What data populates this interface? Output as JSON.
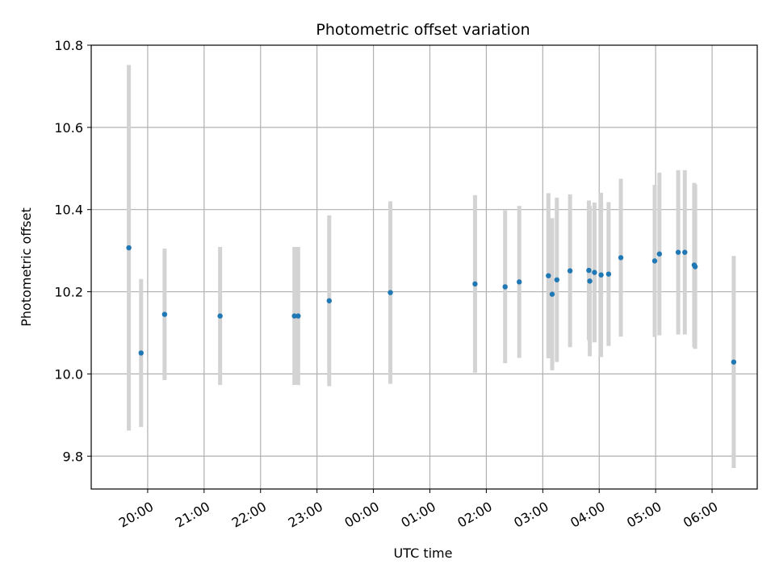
{
  "chart_data": {
    "type": "scatter",
    "title": "Photometric offset variation",
    "xlabel": "UTC time",
    "ylabel": "Photometric offset",
    "grid": true,
    "x_axis": {
      "unit": "hours since 19:00",
      "range": [
        0.0,
        11.8
      ],
      "ticks": [
        {
          "x": 1,
          "label": "20:00"
        },
        {
          "x": 2,
          "label": "21:00"
        },
        {
          "x": 3,
          "label": "22:00"
        },
        {
          "x": 4,
          "label": "23:00"
        },
        {
          "x": 5,
          "label": "00:00"
        },
        {
          "x": 6,
          "label": "01:00"
        },
        {
          "x": 7,
          "label": "02:00"
        },
        {
          "x": 8,
          "label": "03:00"
        },
        {
          "x": 9,
          "label": "04:00"
        },
        {
          "x": 10,
          "label": "05:00"
        },
        {
          "x": 11,
          "label": "06:00"
        }
      ]
    },
    "y_axis": {
      "range": [
        9.72,
        10.8
      ],
      "ticks": [
        9.8,
        10.0,
        10.2,
        10.4,
        10.6,
        10.8
      ],
      "tick_labels": [
        "9.8",
        "10.0",
        "10.2",
        "10.4",
        "10.6",
        "10.8"
      ]
    },
    "colors": {
      "point": "#1f77b4",
      "errorbar": "#d3d3d3",
      "grid": "#b0b0b0"
    },
    "points": [
      {
        "time": "19:40",
        "y": 10.307,
        "yerr": 0.445
      },
      {
        "time": "19:53",
        "y": 10.051,
        "yerr": 0.18
      },
      {
        "time": "20:18",
        "y": 10.145,
        "yerr": 0.16
      },
      {
        "time": "21:17",
        "y": 10.141,
        "yerr": 0.168
      },
      {
        "time": "22:36",
        "y": 10.141,
        "yerr": 0.168
      },
      {
        "time": "22:40",
        "y": 10.141,
        "yerr": 0.168
      },
      {
        "time": "23:13",
        "y": 10.178,
        "yerr": 0.208
      },
      {
        "time": "00:18",
        "y": 10.198,
        "yerr": 0.222
      },
      {
        "time": "01:48",
        "y": 10.219,
        "yerr": 0.216
      },
      {
        "time": "02:20",
        "y": 10.212,
        "yerr": 0.186
      },
      {
        "time": "02:35",
        "y": 10.224,
        "yerr": 0.185
      },
      {
        "time": "03:06",
        "y": 10.239,
        "yerr": 0.201
      },
      {
        "time": "03:10",
        "y": 10.194,
        "yerr": 0.185
      },
      {
        "time": "03:15",
        "y": 10.229,
        "yerr": 0.2
      },
      {
        "time": "03:29",
        "y": 10.251,
        "yerr": 0.186
      },
      {
        "time": "03:49",
        "y": 10.252,
        "yerr": 0.17
      },
      {
        "time": "03:50",
        "y": 10.226,
        "yerr": 0.183
      },
      {
        "time": "03:55",
        "y": 10.247,
        "yerr": 0.17
      },
      {
        "time": "04:02",
        "y": 10.241,
        "yerr": 0.2
      },
      {
        "time": "04:10",
        "y": 10.243,
        "yerr": 0.175
      },
      {
        "time": "04:23",
        "y": 10.283,
        "yerr": 0.192
      },
      {
        "time": "04:59",
        "y": 10.275,
        "yerr": 0.185
      },
      {
        "time": "05:04",
        "y": 10.292,
        "yerr": 0.198
      },
      {
        "time": "05:24",
        "y": 10.296,
        "yerr": 0.2
      },
      {
        "time": "05:31",
        "y": 10.296,
        "yerr": 0.2
      },
      {
        "time": "05:41",
        "y": 10.265,
        "yerr": 0.2
      },
      {
        "time": "05:42",
        "y": 10.261,
        "yerr": 0.2
      },
      {
        "time": "06:23",
        "y": 10.029,
        "yerr": 0.258
      }
    ]
  }
}
